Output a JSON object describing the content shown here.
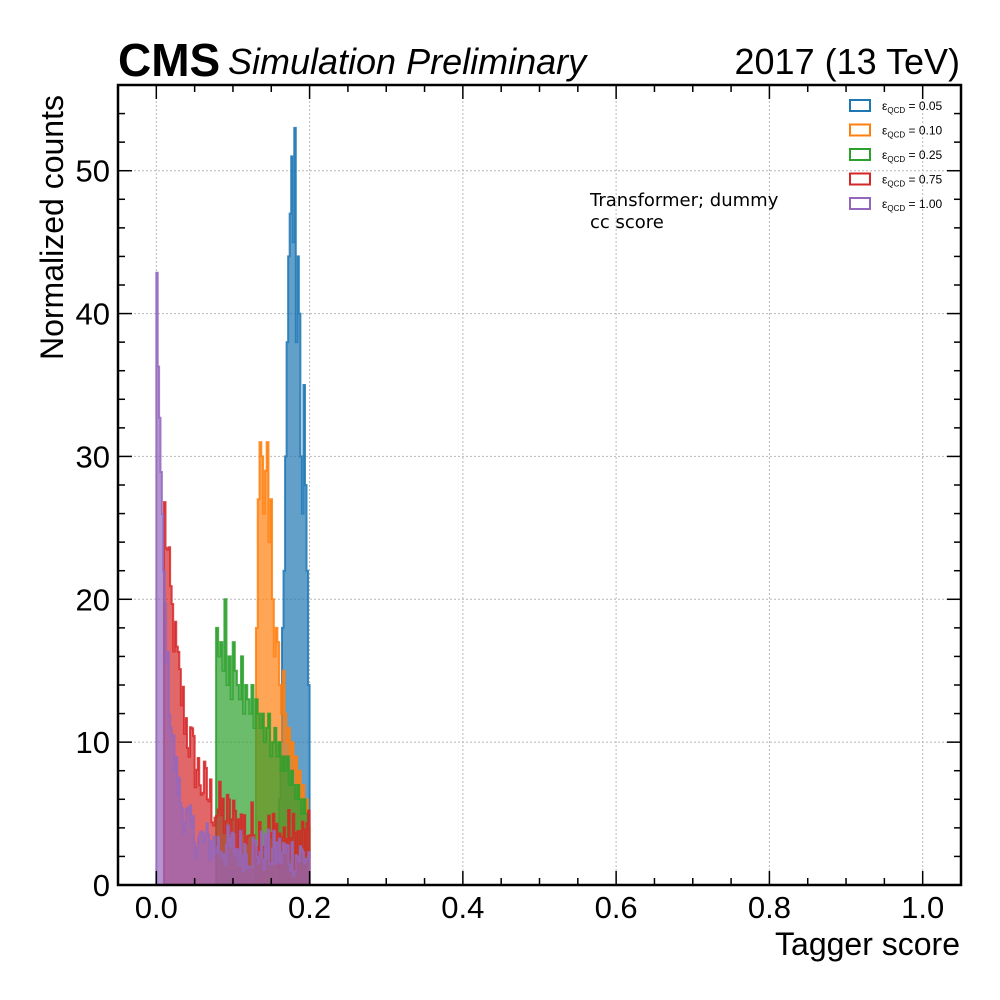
{
  "header": {
    "experiment": "CMS",
    "subtitle": "Simulation Preliminary",
    "lumi": "2017 (13 TeV)"
  },
  "annotation": [
    "Transformer; dummy",
    "cc score"
  ],
  "colors": {
    "eps_0.05": "#1f77b4",
    "eps_0.10": "#ff7f0e",
    "eps_0.25": "#2ca02c",
    "eps_0.75": "#d62728",
    "eps_1.00": "#9467bd"
  },
  "chart_data": {
    "type": "histogram",
    "title": "",
    "xlabel": "Tagger score",
    "ylabel": "Normalized counts",
    "xlim": [
      -0.05,
      1.05
    ],
    "ylim": [
      0,
      56
    ],
    "xticks": [
      "0.0",
      "0.2",
      "0.4",
      "0.6",
      "0.8",
      "1.0"
    ],
    "yticks": [
      "0",
      "10",
      "20",
      "30",
      "40",
      "50"
    ],
    "grid": true,
    "legend_position": "top-right",
    "series": [
      {
        "name": "ε_QCD = 0.05",
        "legend_symbol": "ε",
        "legend_sub": "QCD",
        "legend_value": " = 0.05",
        "color_key": "eps_0.05",
        "x_range": [
          0.16,
          0.2
        ],
        "counts": [
          6,
          10,
          18,
          22,
          30,
          38,
          44,
          47,
          51,
          45,
          53,
          38,
          44,
          40,
          30,
          26,
          35,
          28,
          22,
          14
        ]
      },
      {
        "name": "ε_QCD = 0.10",
        "legend_symbol": "ε",
        "legend_sub": "QCD",
        "legend_value": " = 0.10",
        "color_key": "eps_0.10",
        "x_range": [
          0.13,
          0.2
        ],
        "counts": [
          18,
          27,
          31,
          30,
          26,
          29,
          31,
          24,
          27,
          20,
          16,
          18,
          17,
          14,
          12,
          15,
          12,
          10,
          11,
          9,
          10,
          8,
          9,
          7,
          8,
          6,
          7,
          5,
          6,
          4
        ]
      },
      {
        "name": "ε_QCD = 0.25",
        "legend_symbol": "ε",
        "legend_sub": "QCD",
        "legend_value": " = 0.25",
        "color_key": "eps_0.25",
        "x_range": [
          0.078,
          0.2
        ],
        "counts": [
          18,
          16,
          17,
          15,
          20,
          14,
          16,
          13,
          17,
          15,
          14,
          13,
          16,
          12,
          14,
          13,
          12,
          14,
          11,
          13,
          12,
          11,
          12,
          10,
          11,
          12,
          9,
          10,
          11,
          9,
          10,
          8,
          9,
          8,
          9,
          7,
          8,
          7,
          6,
          7,
          6,
          5,
          6,
          5,
          4
        ]
      },
      {
        "name": "ε_QCD = 0.75",
        "legend_symbol": "ε",
        "legend_sub": "QCD",
        "legend_value": " = 0.75",
        "color_key": "eps_0.75",
        "x_range": [
          0.01,
          0.2
        ],
        "decay": {
          "y0": 27,
          "tau": 0.025,
          "floor": 4.5,
          "fall_to": 3,
          "jitter": 2.2
        },
        "n_bins": 95
      },
      {
        "name": "ε_QCD = 1.00",
        "legend_symbol": "ε",
        "legend_sub": "QCD",
        "legend_value": " = 1.00",
        "color_key": "eps_1.00",
        "x_range": [
          0.0,
          0.2
        ],
        "decay": {
          "y0": 46,
          "tau": 0.012,
          "floor": 3.2,
          "fall_to": 2,
          "jitter": 1.6
        },
        "n_bins": 110
      }
    ]
  }
}
